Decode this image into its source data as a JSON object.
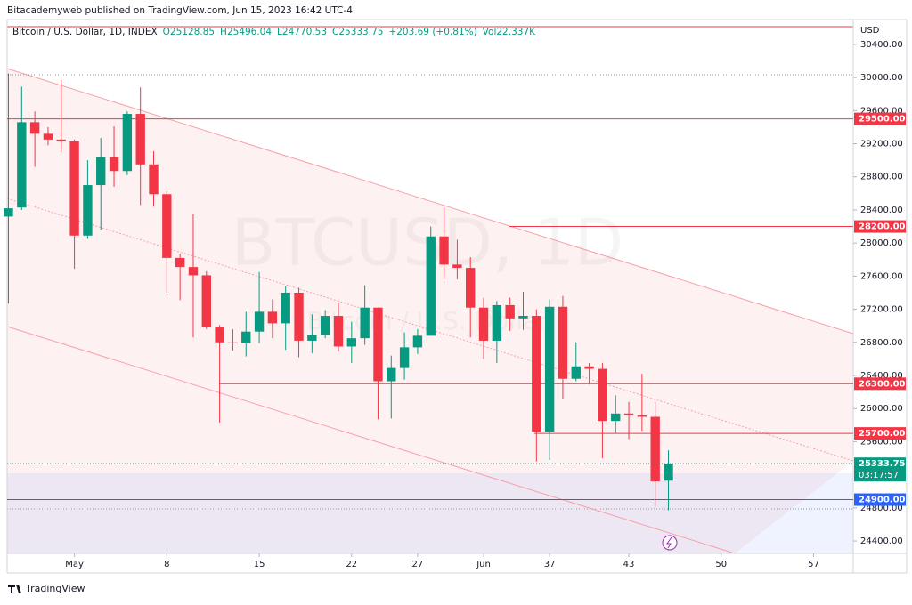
{
  "header": {
    "published": "Bitacademyweb published on TradingView.com, Jun 15, 2023 16:42 UTC-4"
  },
  "chart_data": {
    "type": "candlestick",
    "title": "Bitcoin / U.S. Dollar, 1D, INDEX",
    "legend_values": [
      "O25128.85",
      "H25496.04",
      "L24770.53",
      "C25333.75",
      "+203.69 (+0.81%)",
      "Vol22.337K"
    ],
    "watermark": "BTCUSD, 1D",
    "watermark_sub": "Bitcoin / U.S. Dollar",
    "axis_unit": "USD",
    "x": [
      -4,
      -3,
      -2,
      -1,
      0,
      1,
      2,
      3,
      4,
      5,
      6,
      7,
      8,
      9,
      10,
      11,
      12,
      13,
      14,
      15,
      16,
      17,
      18,
      19,
      20,
      21,
      22,
      23,
      24,
      25,
      26,
      27,
      28,
      29,
      30,
      31,
      32,
      33,
      34,
      35,
      36,
      37,
      38,
      39,
      40,
      41,
      42,
      43,
      44,
      45,
      46
    ],
    "open": [
      28320,
      28430,
      29460,
      29320,
      29250,
      29230,
      28090,
      28700,
      29040,
      28870,
      29560,
      28950,
      28590,
      27820,
      27710,
      27610,
      26980,
      26800,
      26790,
      26930,
      27170,
      27030,
      27400,
      26820,
      26890,
      27120,
      26750,
      26850,
      27220,
      26330,
      26490,
      26740,
      26880,
      28080,
      27740,
      27700,
      27220,
      26820,
      27250,
      27090,
      27120,
      25720,
      27230,
      26360,
      26510,
      26480,
      25850,
      25940,
      25920,
      25900,
      25128.85
    ],
    "high": [
      30050,
      29890,
      29590,
      29400,
      29970,
      29250,
      29000,
      29270,
      29410,
      29590,
      29880,
      29110,
      28620,
      27870,
      28350,
      27660,
      27010,
      26960,
      27170,
      27650,
      27320,
      27480,
      27460,
      27140,
      27190,
      27280,
      27050,
      27490,
      27220,
      26640,
      26920,
      26960,
      28200,
      28440,
      28040,
      27830,
      27340,
      27300,
      27340,
      27410,
      27200,
      27320,
      27360,
      26800,
      26550,
      26550,
      26160,
      26080,
      26420,
      26080,
      25496.04
    ],
    "low": [
      27270,
      28400,
      28920,
      29180,
      29100,
      27690,
      28050,
      28160,
      28680,
      28820,
      28460,
      28440,
      27400,
      27310,
      26860,
      26960,
      25830,
      26700,
      26630,
      26790,
      26850,
      26710,
      26620,
      26670,
      26850,
      26690,
      26550,
      26770,
      25870,
      25880,
      26350,
      26660,
      26880,
      27560,
      27560,
      26860,
      26600,
      26550,
      26940,
      26950,
      25360,
      25380,
      26120,
      26330,
      26290,
      25400,
      25700,
      25630,
      25730,
      24820,
      24770.53
    ],
    "close": [
      28420,
      29460,
      29320,
      29250,
      29230,
      28090,
      28700,
      29040,
      28870,
      29560,
      28950,
      28590,
      27820,
      27710,
      27610,
      26980,
      26800,
      26790,
      26930,
      27170,
      27030,
      27400,
      26820,
      26890,
      27120,
      26750,
      26850,
      27220,
      26330,
      26490,
      26740,
      26880,
      28080,
      27740,
      27700,
      27220,
      26820,
      27250,
      27090,
      27120,
      25720,
      27230,
      26360,
      26510,
      26480,
      25850,
      25940,
      25920,
      25900,
      25120,
      25333.75
    ],
    "up_color": "#089981",
    "down_color": "#f23645",
    "levels": {
      "values": [
        29500,
        28200,
        26300,
        25700,
        24900
      ],
      "value_labels": [
        "29500.00",
        "28200.00",
        "26300.00",
        "25700.00",
        "24900.00"
      ],
      "colors": [
        "#f23645",
        "#f23645",
        "#f23645",
        "#f23645",
        "#2962ff"
      ]
    },
    "last_label": "25333.75",
    "countdown": "03:17:57",
    "xlim": [
      -4.1,
      60.0
    ],
    "xticks": [
      {
        "value": 1,
        "label": "May"
      },
      8,
      15,
      22,
      27,
      {
        "value": 32,
        "label": "Jun"
      },
      37,
      43,
      50,
      57
    ],
    "ylim": [
      24250,
      30700
    ],
    "yticks": [
      {
        "value": 30400,
        "label": "30400.00"
      },
      {
        "value": 30000,
        "label": "30000.00"
      },
      {
        "value": 29600,
        "label": "29600.00"
      },
      {
        "value": 29200,
        "label": "29200.00"
      },
      {
        "value": 28800,
        "label": "28800.00"
      },
      {
        "value": 28400,
        "label": "28400.00"
      },
      {
        "value": 28000,
        "label": "28000.00"
      },
      {
        "value": 27600,
        "label": "27600.00"
      },
      {
        "value": 27200,
        "label": "27200.00"
      },
      {
        "value": 26800,
        "label": "26800.00"
      },
      {
        "value": 26400,
        "label": "26400.00"
      },
      {
        "value": 26000,
        "label": "26000.00"
      },
      {
        "value": 25600,
        "label": "25600.00"
      },
      {
        "value": 24800,
        "label": "24800.00"
      },
      {
        "value": 24400,
        "label": "24400.00"
      }
    ]
  },
  "footer": {
    "brand": "TradingView"
  }
}
